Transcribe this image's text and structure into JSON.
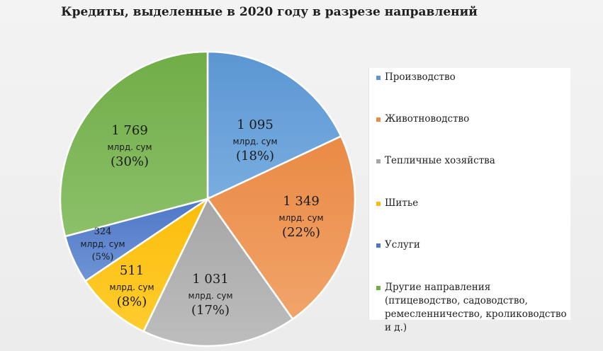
{
  "chart_data": {
    "type": "pie",
    "title": "Кредиты, выделенные в 2020 году в разрезе направлений",
    "slices": [
      {
        "name": "Производство",
        "value": 1095,
        "value_label": "1 095",
        "unit": "млрд. сум",
        "percent_label": "(18%)",
        "color": "#79ade0",
        "color_dark": "#5b96d2"
      },
      {
        "name": "Животноводство",
        "value": 1349,
        "value_label": "1 349",
        "unit": "млрд. сум",
        "percent_label": "(22%)",
        "color": "#f1a46a",
        "color_dark": "#ea8a45"
      },
      {
        "name": "Тепличные хозяйства",
        "value": 1031,
        "value_label": "1 031",
        "unit": "млрд. сум",
        "percent_label": "(17%)",
        "color": "#bdbdbd",
        "color_dark": "#a6a6a6"
      },
      {
        "name": "Шитье",
        "value": 511,
        "value_label": "511",
        "unit": "млрд. сум",
        "percent_label": "(8%)",
        "color": "#ffcc2e",
        "color_dark": "#fbbd0b"
      },
      {
        "name": "Услуги",
        "value": 324,
        "value_label": "324",
        "unit": "млрд. сум",
        "percent_label": "(5%)",
        "color": "#6f94d6",
        "color_dark": "#4f78c6"
      },
      {
        "name": "Другие направления (птицеводство, садоводство, ремесленничество, кролиководство и д.)",
        "value": 1769,
        "value_label": "1 769",
        "unit": "млрд. сум",
        "percent_label": "(30%)",
        "color": "#8cc06a",
        "color_dark": "#70ad47"
      }
    ],
    "legend_position": "right"
  }
}
